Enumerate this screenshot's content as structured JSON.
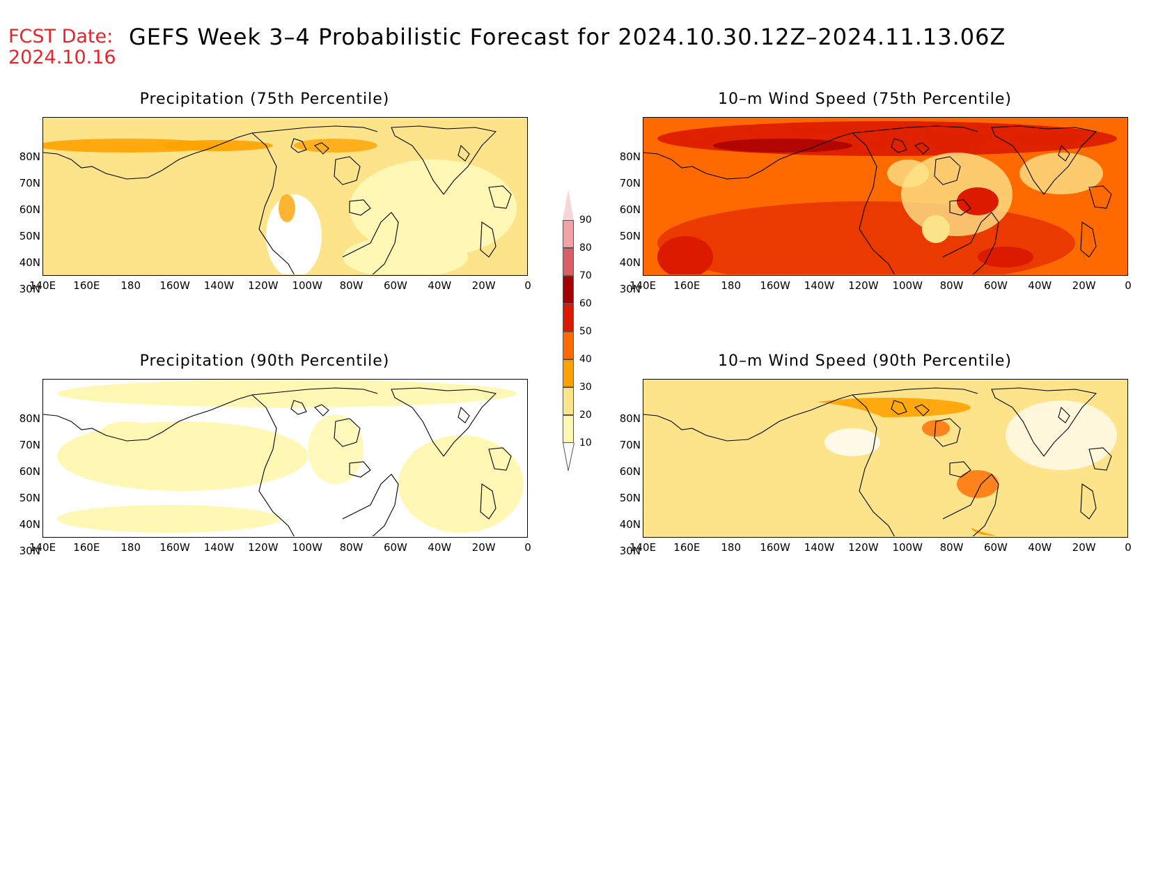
{
  "header": {
    "fcst_label": "FCST Date:",
    "fcst_date": "2024.10.16",
    "title": "GEFS Week 3–4 Probabilistic Forecast for 2024.10.30.12Z–2024.11.13.06Z"
  },
  "axes": {
    "y_ticks": [
      "80N",
      "70N",
      "60N",
      "50N",
      "40N",
      "30N"
    ],
    "x_ticks": [
      "140E",
      "160E",
      "180",
      "160W",
      "140W",
      "120W",
      "100W",
      "80W",
      "60W",
      "40W",
      "20W",
      "0"
    ]
  },
  "panels": [
    {
      "title": "Precipitation (75th Percentile)",
      "base_color": "#fde48a"
    },
    {
      "title": "10–m Wind Speed (75th Percentile)",
      "base_color": "#ff6a00"
    },
    {
      "title": "Precipitation (90th Percentile)",
      "base_color": "#ffffff"
    },
    {
      "title": "10–m Wind Speed (90th Percentile)",
      "base_color": "#fde48a"
    }
  ],
  "colorbar": {
    "levels": [
      "90",
      "80",
      "70",
      "60",
      "50",
      "40",
      "30",
      "20",
      "10"
    ],
    "colors": [
      "#f2a1a7",
      "#d96064",
      "#a50000",
      "#dc1a00",
      "#ff6a00",
      "#ffa200",
      "#fde48a",
      "#fff8b4"
    ]
  }
}
